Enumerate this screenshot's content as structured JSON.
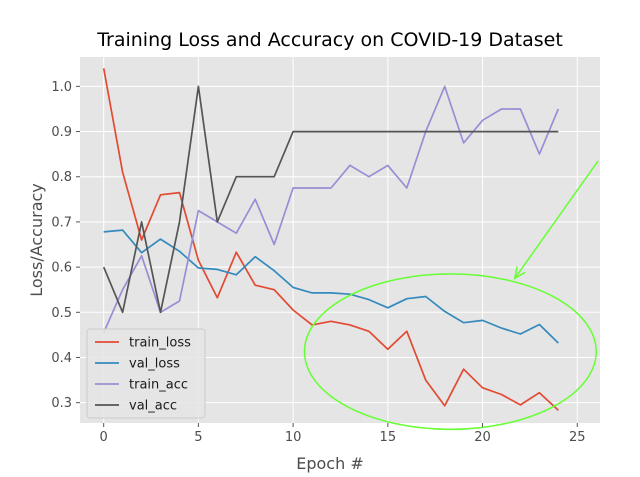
{
  "chart_data": {
    "type": "line",
    "title": "Training Loss and Accuracy on COVID-19 Dataset",
    "xlabel": "Epoch #",
    "ylabel": "Loss/Accuracy",
    "xlim": [
      -1.25,
      26.2
    ],
    "ylim": [
      0.255,
      1.065
    ],
    "xticks": [
      0,
      5,
      10,
      15,
      20,
      25
    ],
    "yticks": [
      0.3,
      0.4,
      0.5,
      0.6,
      0.7,
      0.8,
      0.9,
      1.0
    ],
    "ytick_labels": [
      "0.3",
      "0.4",
      "0.5",
      "0.6",
      "0.7",
      "0.8",
      "0.9",
      "1.0"
    ],
    "grid": true,
    "legend_position": "lower-left",
    "x": [
      0,
      1,
      2,
      3,
      4,
      5,
      6,
      7,
      8,
      9,
      10,
      11,
      12,
      13,
      14,
      15,
      16,
      17,
      18,
      19,
      20,
      21,
      22,
      23,
      24
    ],
    "series": [
      {
        "name": "train_loss",
        "color": "#e24a33",
        "values": [
          1.04,
          0.81,
          0.66,
          0.76,
          0.765,
          0.615,
          0.532,
          0.633,
          0.56,
          0.55,
          0.505,
          0.472,
          0.48,
          0.472,
          0.458,
          0.418,
          0.458,
          0.35,
          0.293,
          0.374,
          0.333,
          0.318,
          0.295,
          0.322,
          0.283
        ]
      },
      {
        "name": "val_loss",
        "color": "#348abd",
        "values": [
          0.678,
          0.682,
          0.632,
          0.662,
          0.635,
          0.598,
          0.595,
          0.583,
          0.623,
          0.592,
          0.555,
          0.543,
          0.543,
          0.54,
          0.528,
          0.51,
          0.53,
          0.535,
          0.502,
          0.477,
          0.482,
          0.465,
          0.452,
          0.473,
          0.432
        ]
      },
      {
        "name": "train_acc",
        "color": "#988ed5",
        "values": [
          0.455,
          0.55,
          0.625,
          0.5,
          0.525,
          0.725,
          0.7,
          0.675,
          0.75,
          0.65,
          0.775,
          0.775,
          0.775,
          0.825,
          0.8,
          0.825,
          0.775,
          0.9,
          1.0,
          0.875,
          0.925,
          0.95,
          0.95,
          0.85,
          0.95
        ]
      },
      {
        "name": "val_acc",
        "color": "#555555",
        "values": [
          0.6,
          0.5,
          0.7,
          0.5,
          0.7,
          1.0,
          0.7,
          0.8,
          0.8,
          0.8,
          0.9,
          0.9,
          0.9,
          0.9,
          0.9,
          0.9,
          0.9,
          0.9,
          0.9,
          0.9,
          0.9,
          0.9,
          0.9,
          0.9,
          0.9
        ]
      }
    ],
    "annotations": [
      {
        "type": "ellipse",
        "color": "#66ff33",
        "center": [
          18.3,
          0.413
        ],
        "radius_x": 7.7,
        "radius_y": 0.172
      },
      {
        "type": "arrow",
        "color": "#66ff33",
        "from": [
          26.1,
          0.835
        ],
        "to": [
          21.7,
          0.575
        ]
      }
    ]
  }
}
